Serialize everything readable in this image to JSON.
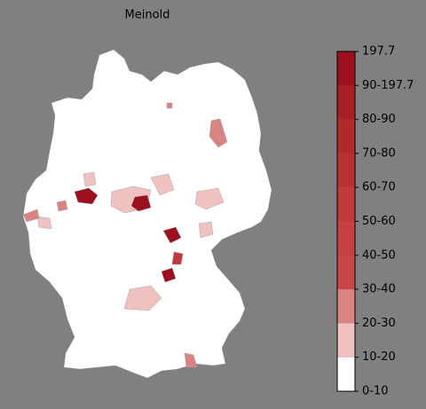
{
  "title": "Meinold",
  "colorbar": {
    "labels": [
      "0-10",
      "10-20",
      "20-30",
      "30-40",
      "40-50",
      "50-60",
      "60-70",
      "70-80",
      "80-90",
      "90-197.7",
      "197.7"
    ],
    "colors": [
      "#ffffff",
      "#efc1c1",
      "#da8383",
      "#c94646",
      "#c54040",
      "#c03a3a",
      "#b93232",
      "#b12a2a",
      "#a81f26",
      "#9b0f1f"
    ]
  }
}
